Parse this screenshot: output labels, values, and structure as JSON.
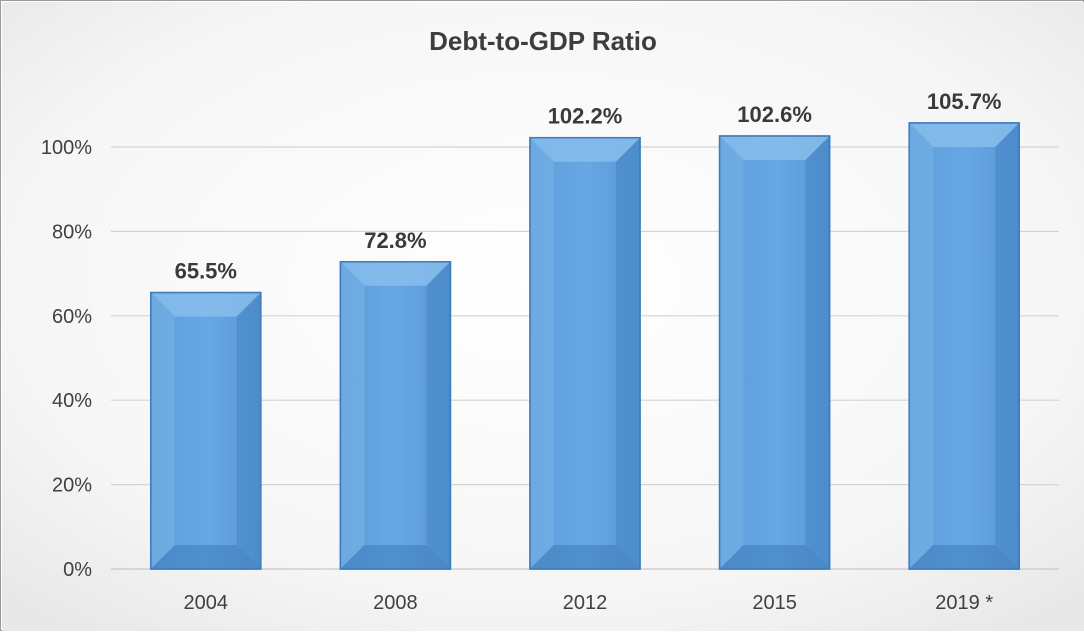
{
  "chart_data": {
    "type": "bar",
    "title": "Debt-to-GDP Ratio",
    "categories": [
      "2004",
      "2008",
      "2012",
      "2015",
      "2019 *"
    ],
    "values": [
      65.5,
      72.8,
      102.2,
      102.6,
      105.7
    ],
    "data_labels": [
      "65.5%",
      "72.8%",
      "102.2%",
      "102.6%",
      "105.7%"
    ],
    "ylim": [
      0,
      100
    ],
    "yticks": [
      0,
      20,
      40,
      60,
      80,
      100
    ],
    "ytick_labels": [
      "0%",
      "20%",
      "40%",
      "60%",
      "80%",
      "100%"
    ],
    "xlabel": "",
    "ylabel": "",
    "grid": true,
    "legend": "none",
    "colors": {
      "bar": "#61a3e0",
      "bar_edge": "#3c7cbf",
      "grid": "#d4d4d4",
      "plot_background": "#f7f7f7",
      "title": "#3d3d3d",
      "text": "#404040"
    }
  }
}
